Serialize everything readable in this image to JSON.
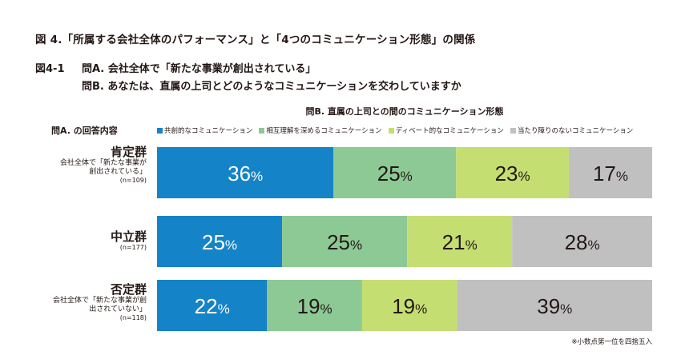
{
  "figure_title": "図 4.「所属する会社全体のパフォーマンス」と「4つのコミュニケーション形態」の関係",
  "subfigure": {
    "number": "図4-1",
    "question_a": "問A. 会社全体で「新たな事業が創出されている」",
    "question_b": "問B. あなたは、直属の上司とどのようなコミュニケーションを交わしていますか"
  },
  "qb_header": "問B. 直属の上司との間のコミュニケーション形態",
  "qa_header": "問A. の回答内容",
  "footnote": "※小数点第一位を四捨五入",
  "groups": [
    {
      "name": "肯定群",
      "desc": "会社全体で「新たな事業が\n創出されている」",
      "n": "(n=109)"
    },
    {
      "name": "中立群",
      "desc": "",
      "n": "(n=177)"
    },
    {
      "name": "否定群",
      "desc": "会社全体で「新たな事業が創\n出されていない」",
      "n": "(n=118)"
    }
  ],
  "colors": {
    "series": [
      "#1583c7",
      "#8cc995",
      "#c4de72",
      "#c0c0c1"
    ]
  },
  "chart_data": {
    "type": "bar",
    "orientation": "horizontal",
    "stacked": true,
    "percent_stacked": true,
    "title": "問B. 直属の上司との間のコミュニケーション形態",
    "categories": [
      "肯定群",
      "中立群",
      "否定群"
    ],
    "series": [
      {
        "name": "共創的なコミュニケーション",
        "values": [
          36,
          25,
          22
        ]
      },
      {
        "name": "相互理解を深めるコミュニケーション",
        "values": [
          25,
          25,
          19
        ]
      },
      {
        "name": "ディベート的なコミュニケーション",
        "values": [
          23,
          21,
          19
        ]
      },
      {
        "name": "当たり障りのないコミュニケーション",
        "values": [
          17,
          28,
          39
        ]
      }
    ],
    "value_suffix": "%",
    "legend": "top",
    "xlim": [
      0,
      100
    ]
  }
}
